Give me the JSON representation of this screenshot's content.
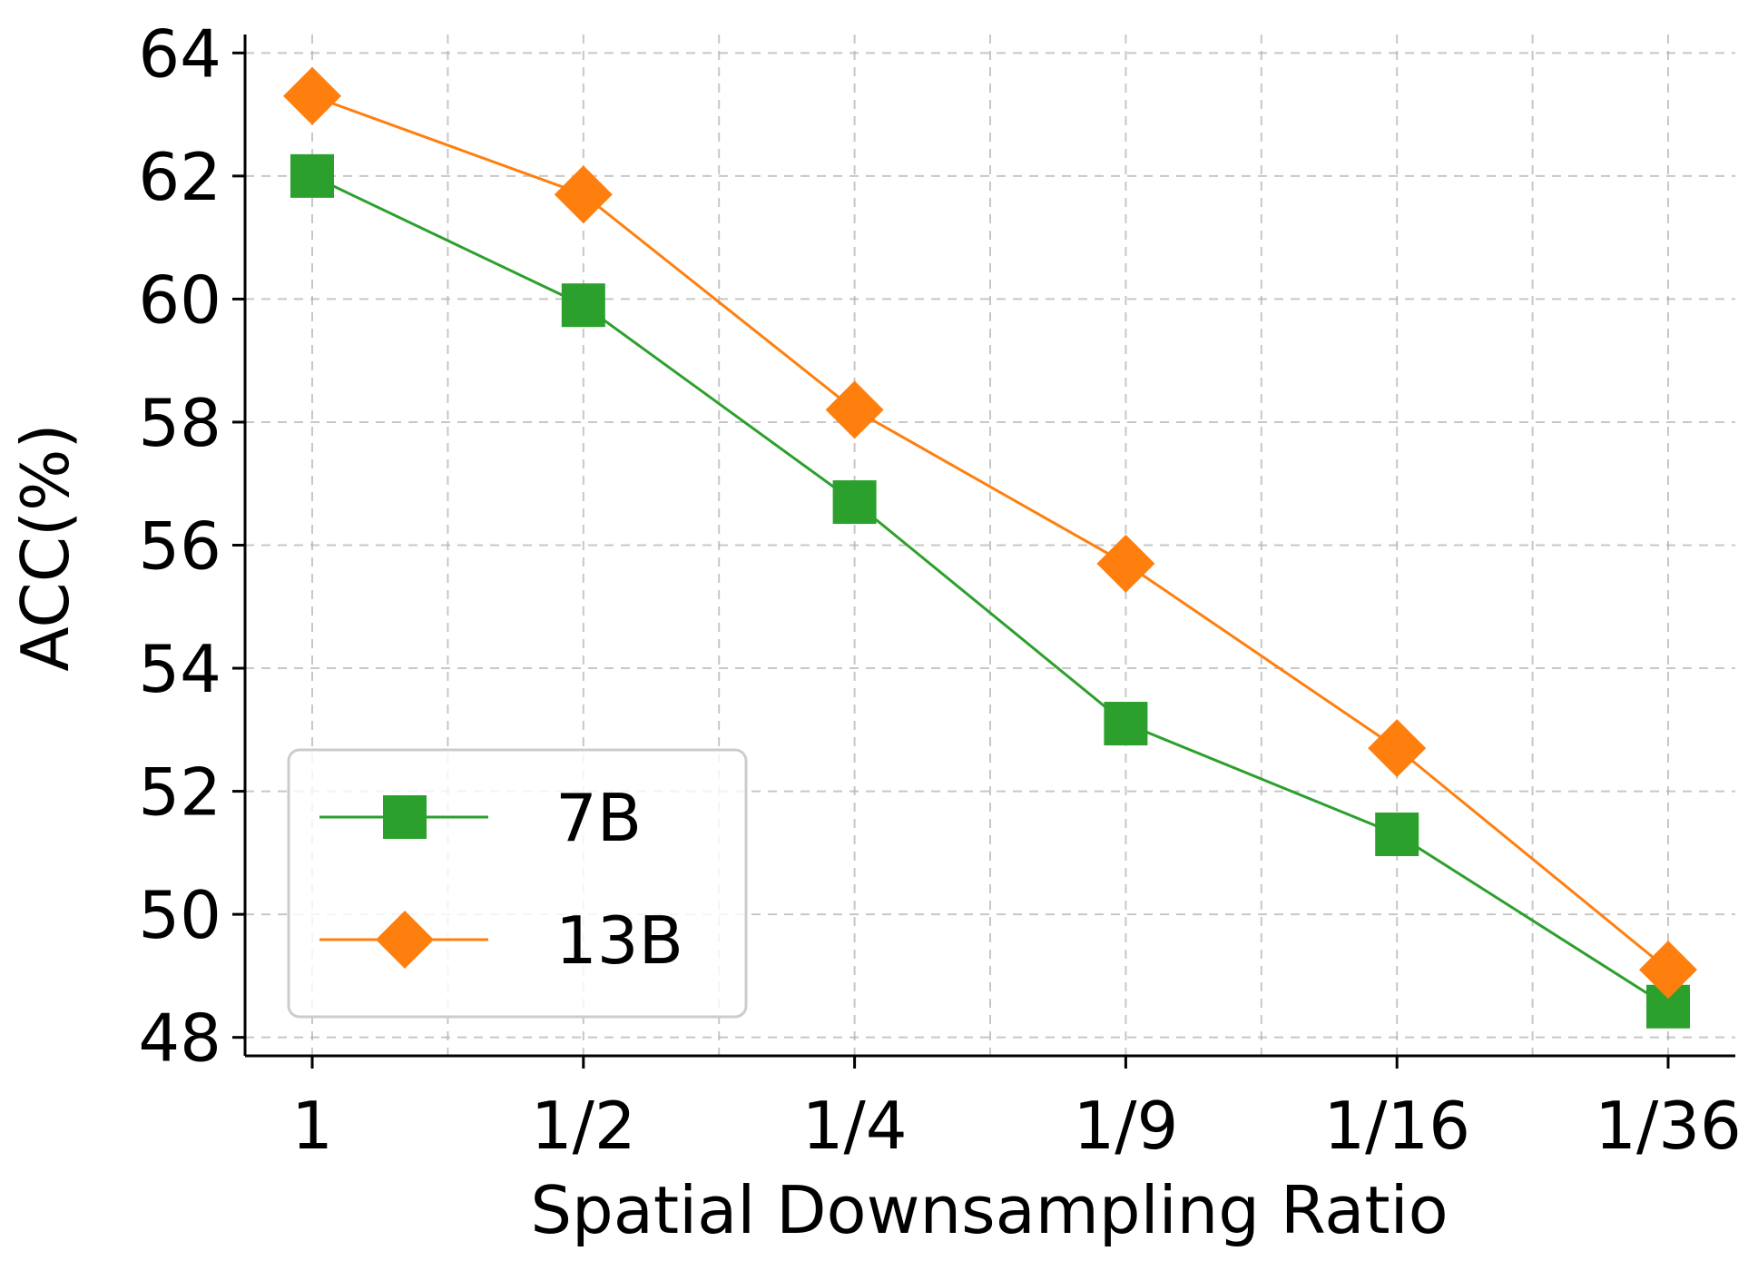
{
  "chart_data": {
    "type": "line",
    "title": "",
    "xlabel": "Spatial Downsampling Ratio",
    "ylabel": "ACC(%)",
    "categories": [
      "1",
      "1/2",
      "1/4",
      "1/9",
      "1/16",
      "1/36"
    ],
    "ylim": [
      47.7,
      64.3
    ],
    "yticks": [
      48,
      50,
      52,
      54,
      56,
      58,
      60,
      62,
      64
    ],
    "ytick_labels": [
      "48",
      "50",
      "52",
      "54",
      "56",
      "58",
      "60",
      "62",
      "64"
    ],
    "grid": true,
    "legend_position": "lower-left",
    "series": [
      {
        "name": "7B",
        "marker": "square",
        "color": "#2ca02c",
        "values": [
          62.0,
          59.9,
          56.7,
          53.1,
          51.3,
          48.5
        ]
      },
      {
        "name": "13B",
        "marker": "diamond",
        "color": "#ff7f0e",
        "values": [
          63.3,
          61.7,
          58.2,
          55.7,
          52.7,
          49.1
        ]
      }
    ]
  }
}
